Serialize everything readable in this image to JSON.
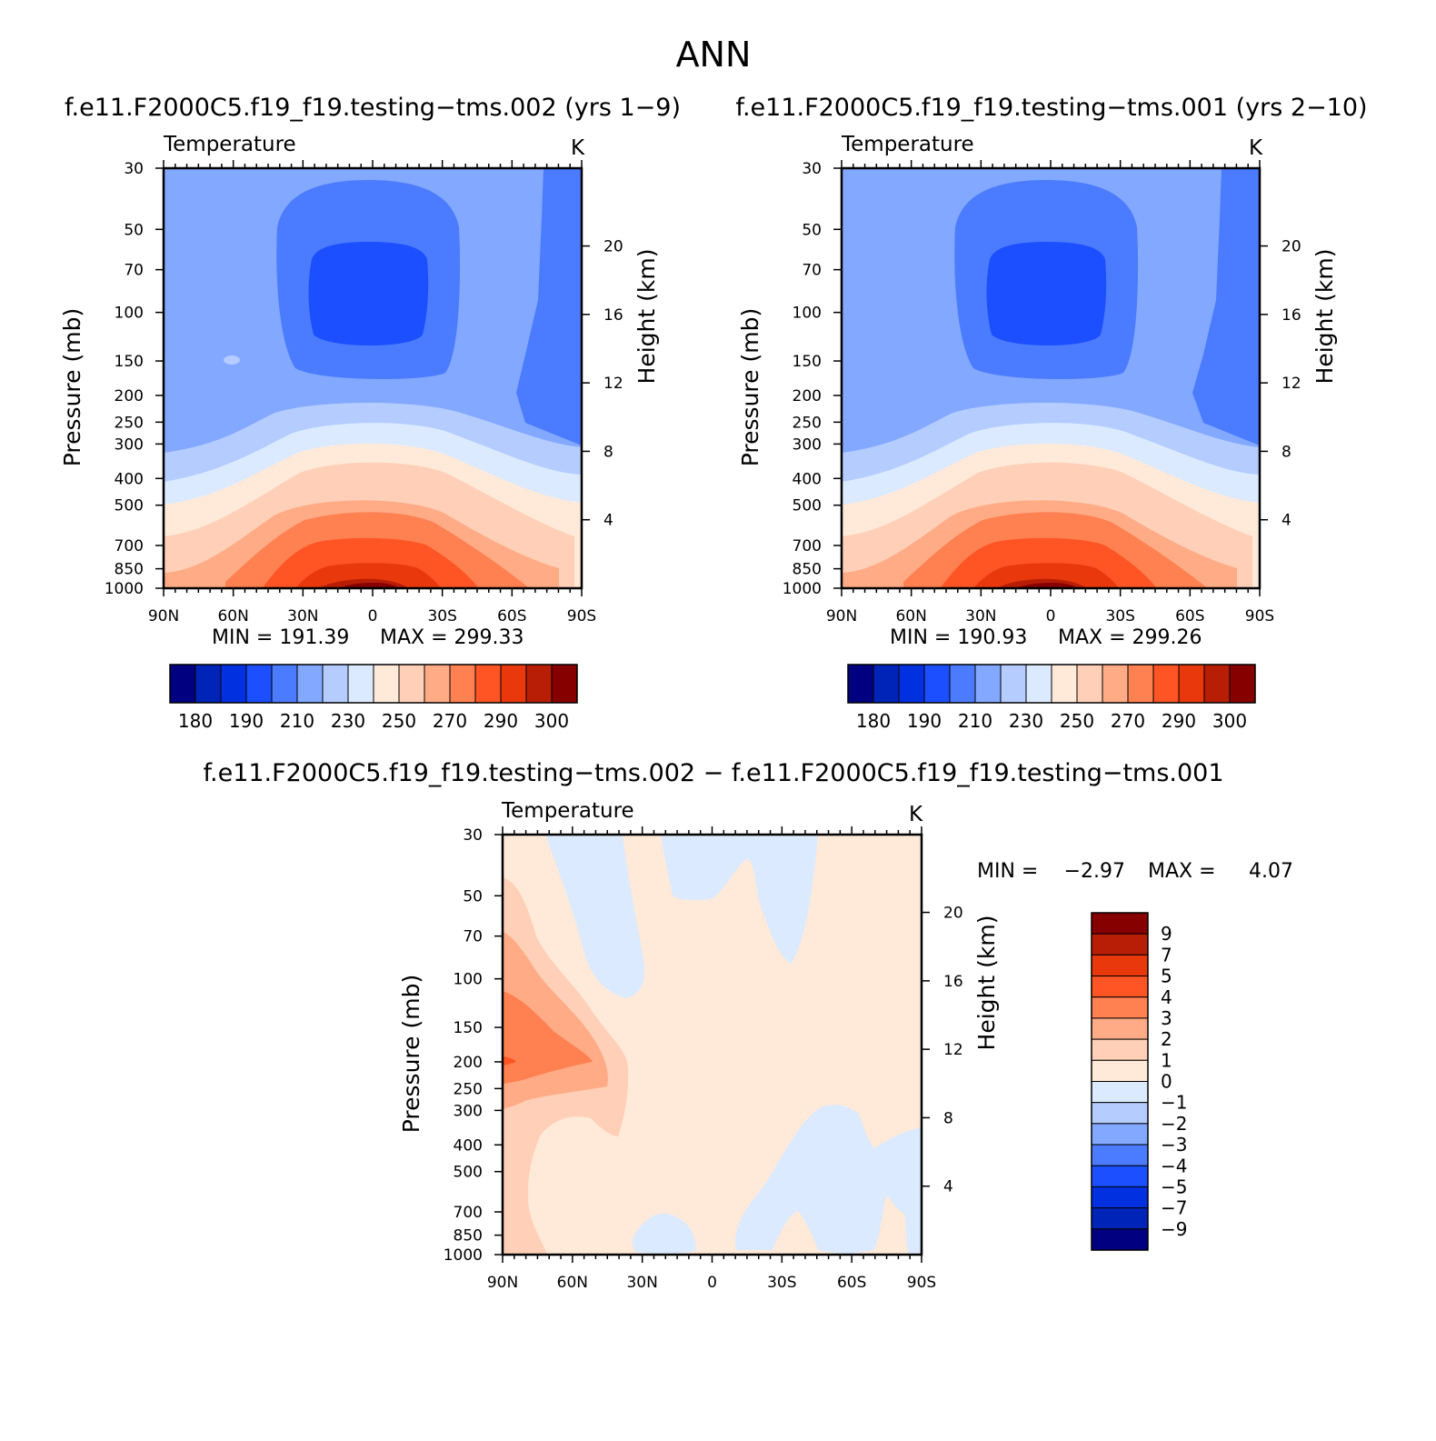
{
  "title": "ANN",
  "colors": {
    "temp_scale": [
      "#000080",
      "#0024b8",
      "#0030e0",
      "#1c4fff",
      "#4b7cff",
      "#82a8ff",
      "#b4ccff",
      "#dbeaff",
      "#ffe9d8",
      "#ffcfb7",
      "#ffab86",
      "#ff8050",
      "#ff5424",
      "#e8380c",
      "#b81e05",
      "#870000"
    ],
    "diff_scale": [
      "#870000",
      "#b81e05",
      "#e8380c",
      "#ff5424",
      "#ff8050",
      "#ffab86",
      "#ffcfb7",
      "#ffe9d8",
      "#dbeaff",
      "#b4ccff",
      "#82a8ff",
      "#4b7cff",
      "#1c4fff",
      "#0030e0",
      "#0024b8",
      "#000080"
    ]
  },
  "panels": {
    "p1": {
      "case": "f.e11.F2000C5.f19_f19.testing−tms.002 (yrs 1−9)",
      "var": "Temperature",
      "units": "K",
      "min_label": "MIN = 191.39",
      "max_label": "MAX = 299.33",
      "min": 191.39,
      "max": 299.33
    },
    "p2": {
      "case": "f.e11.F2000C5.f19_f19.testing−tms.001 (yrs 2−10)",
      "var": "Temperature",
      "units": "K",
      "min_label": "MIN = 190.93",
      "max_label": "MAX = 299.26",
      "min": 190.93,
      "max": 299.26
    },
    "diff": {
      "case": "f.e11.F2000C5.f19_f19.testing−tms.002 − f.e11.F2000C5.f19_f19.testing−tms.001",
      "var": "Temperature",
      "units": "K",
      "min_label": "MIN =",
      "min_value": "−2.97",
      "max_label": "MAX =",
      "max_value": "4.07",
      "min": -2.97,
      "max": 4.07
    }
  },
  "chart_data": [
    {
      "type": "contour",
      "title": "f.e11.F2000C5.f19_f19.testing−tms.002 (yrs 1−9)",
      "xlabel": "",
      "ylabel": "Pressure (mb)",
      "y2label": "Height (km)",
      "x_ticks": [
        "90N",
        "60N",
        "30N",
        "0",
        "30S",
        "60S",
        "90S"
      ],
      "y_ticks": [
        "30",
        "50",
        "70",
        "100",
        "150",
        "200",
        "250",
        "300",
        "400",
        "500",
        "700",
        "850",
        "1000"
      ],
      "y2_ticks": [
        "20",
        "16",
        "12",
        "8",
        "4"
      ],
      "colorbar_labels": [
        "180",
        "190",
        "210",
        "230",
        "250",
        "270",
        "290",
        "300"
      ],
      "levels": [
        180,
        190,
        200,
        210,
        220,
        230,
        240,
        250,
        260,
        270,
        280,
        290,
        295,
        300
      ]
    },
    {
      "type": "contour",
      "title": "f.e11.F2000C5.f19_f19.testing−tms.001 (yrs 2−10)",
      "xlabel": "",
      "ylabel": "Pressure (mb)",
      "y2label": "Height (km)",
      "x_ticks": [
        "90N",
        "60N",
        "30N",
        "0",
        "30S",
        "60S",
        "90S"
      ],
      "y_ticks": [
        "30",
        "50",
        "70",
        "100",
        "150",
        "200",
        "250",
        "300",
        "400",
        "500",
        "700",
        "850",
        "1000"
      ],
      "y2_ticks": [
        "20",
        "16",
        "12",
        "8",
        "4"
      ],
      "colorbar_labels": [
        "180",
        "190",
        "210",
        "230",
        "250",
        "270",
        "290",
        "300"
      ],
      "levels": [
        180,
        190,
        200,
        210,
        220,
        230,
        240,
        250,
        260,
        270,
        280,
        290,
        295,
        300
      ]
    },
    {
      "type": "contour",
      "title": "f.e11.F2000C5.f19_f19.testing−tms.002 − f.e11.F2000C5.f19_f19.testing−tms.001",
      "xlabel": "",
      "ylabel": "Pressure (mb)",
      "y2label": "Height (km)",
      "x_ticks": [
        "90N",
        "60N",
        "30N",
        "0",
        "30S",
        "60S",
        "90S"
      ],
      "y_ticks": [
        "30",
        "50",
        "70",
        "100",
        "150",
        "200",
        "250",
        "300",
        "400",
        "500",
        "700",
        "850",
        "1000"
      ],
      "y2_ticks": [
        "20",
        "16",
        "12",
        "8",
        "4"
      ],
      "colorbar_labels": [
        "9",
        "7",
        "5",
        "4",
        "3",
        "2",
        "1",
        "0",
        "−1",
        "−2",
        "−3",
        "−4",
        "−5",
        "−7",
        "−9"
      ],
      "levels": [
        9,
        7,
        5,
        4,
        3,
        2,
        1,
        0,
        -1,
        -2,
        -3,
        -4,
        -5,
        -7,
        -9
      ]
    }
  ]
}
